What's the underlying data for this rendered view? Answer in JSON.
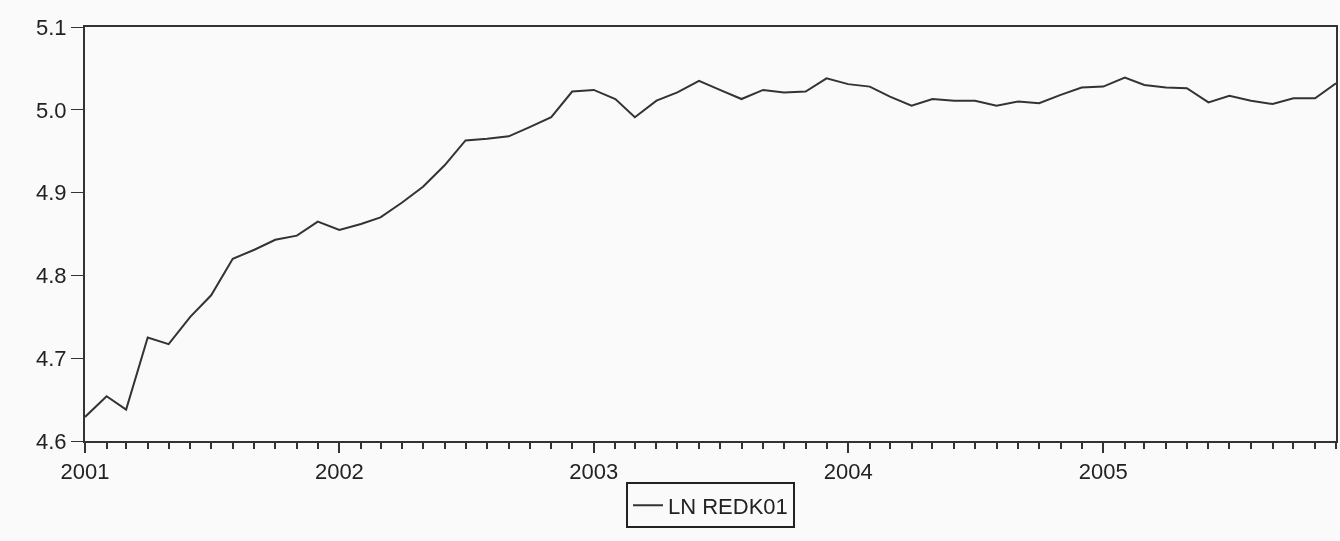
{
  "chart_data": {
    "type": "line",
    "x": [
      "2001-01",
      "2001-02",
      "2001-03",
      "2001-04",
      "2001-05",
      "2001-06",
      "2001-07",
      "2001-08",
      "2001-09",
      "2001-10",
      "2001-11",
      "2001-12",
      "2002-01",
      "2002-02",
      "2002-03",
      "2002-04",
      "2002-05",
      "2002-06",
      "2002-07",
      "2002-08",
      "2002-09",
      "2002-10",
      "2002-11",
      "2002-12",
      "2003-01",
      "2003-02",
      "2003-03",
      "2003-04",
      "2003-05",
      "2003-06",
      "2003-07",
      "2003-08",
      "2003-09",
      "2003-10",
      "2003-11",
      "2003-12",
      "2004-01",
      "2004-02",
      "2004-03",
      "2004-04",
      "2004-05",
      "2004-06",
      "2004-07",
      "2004-08",
      "2004-09",
      "2004-10",
      "2004-11",
      "2004-12",
      "2005-01",
      "2005-02",
      "2005-03",
      "2005-04",
      "2005-05",
      "2005-06",
      "2005-07",
      "2005-08",
      "2005-09",
      "2005-10",
      "2005-11",
      "2005-12"
    ],
    "series": [
      {
        "name": "LN REDK01",
        "color": "#333333",
        "values": [
          4.629,
          4.654,
          4.638,
          4.725,
          4.717,
          4.75,
          4.776,
          4.82,
          4.831,
          4.843,
          4.848,
          4.865,
          4.855,
          4.862,
          4.87,
          4.888,
          4.907,
          4.933,
          4.963,
          4.965,
          4.968,
          4.979,
          4.991,
          5.022,
          5.024,
          5.013,
          4.991,
          5.011,
          5.021,
          5.035,
          5.024,
          5.013,
          5.024,
          5.021,
          5.022,
          5.038,
          5.031,
          5.028,
          5.016,
          5.005,
          5.013,
          5.011,
          5.011,
          5.005,
          5.01,
          5.008,
          5.018,
          5.027,
          5.028,
          5.039,
          5.03,
          5.027,
          5.026,
          5.009,
          5.017,
          5.011,
          5.007,
          5.014,
          5.014,
          5.032
        ]
      }
    ],
    "xlim": [
      "2001-01",
      "2005-12"
    ],
    "xticks": [
      {
        "value": "2001-01",
        "label": "2001"
      },
      {
        "value": "2002-01",
        "label": "2002"
      },
      {
        "value": "2003-01",
        "label": "2003"
      },
      {
        "value": "2004-01",
        "label": "2004"
      },
      {
        "value": "2005-01",
        "label": "2005"
      }
    ],
    "ylim": [
      4.6,
      5.1
    ],
    "yticks": [
      {
        "value": 4.6,
        "label": "4.6"
      },
      {
        "value": 4.7,
        "label": "4.7"
      },
      {
        "value": 4.8,
        "label": "4.8"
      },
      {
        "value": 4.9,
        "label": "4.9"
      },
      {
        "value": 5.0,
        "label": "5.0"
      },
      {
        "value": 5.1,
        "label": "5.1"
      }
    ],
    "legend": "bottom",
    "line_style": "solid"
  }
}
